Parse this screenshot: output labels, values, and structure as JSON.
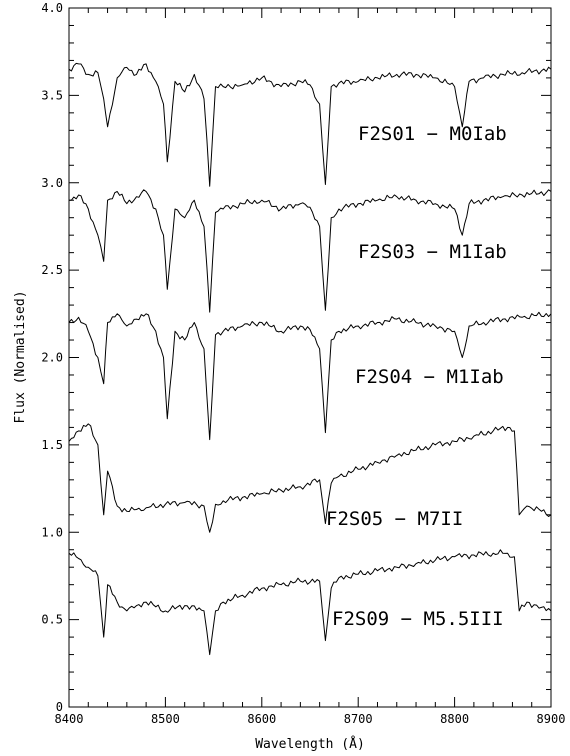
{
  "chart_data": {
    "type": "line",
    "xlabel": "Wavelength (Å)",
    "ylabel": "Flux (Normalised)",
    "xlim": [
      8400,
      8900
    ],
    "ylim": [
      0,
      4.0
    ],
    "x_ticks": [
      8400,
      8500,
      8600,
      8700,
      8800,
      8900
    ],
    "y_ticks": [
      0,
      0.5,
      1.0,
      1.5,
      2.0,
      2.5,
      3.0,
      3.5,
      4.0
    ],
    "y_tick_labels": [
      "0",
      "0.5",
      "1.0",
      "1.5",
      "2.0",
      "2.5",
      "3.0",
      "3.5",
      "4.0"
    ],
    "line_color": "#000000",
    "grid": false,
    "legend": "none",
    "series": [
      {
        "name": "F2S01 − M0Iab",
        "x": [
          8400,
          8410,
          8420,
          8430,
          8436,
          8440,
          8450,
          8460,
          8470,
          8480,
          8490,
          8498,
          8502,
          8510,
          8520,
          8530,
          8540,
          8546,
          8552,
          8560,
          8580,
          8600,
          8620,
          8640,
          8650,
          8660,
          8666,
          8672,
          8680,
          8700,
          8720,
          8740,
          8760,
          8780,
          8800,
          8808,
          8815,
          8830,
          8850,
          8870,
          8900
        ],
        "y": [
          3.65,
          3.68,
          3.62,
          3.63,
          3.48,
          3.32,
          3.6,
          3.66,
          3.62,
          3.68,
          3.58,
          3.45,
          3.12,
          3.58,
          3.52,
          3.62,
          3.48,
          2.98,
          3.55,
          3.55,
          3.56,
          3.6,
          3.55,
          3.58,
          3.56,
          3.45,
          2.99,
          3.55,
          3.57,
          3.58,
          3.6,
          3.62,
          3.62,
          3.6,
          3.55,
          3.32,
          3.58,
          3.6,
          3.62,
          3.63,
          3.65
        ]
      },
      {
        "name": "F2S03 − M1Iab",
        "x": [
          8400,
          8410,
          8420,
          8430,
          8436,
          8440,
          8450,
          8460,
          8470,
          8480,
          8490,
          8498,
          8502,
          8510,
          8520,
          8530,
          8540,
          8546,
          8552,
          8560,
          8580,
          8600,
          8620,
          8640,
          8650,
          8660,
          8666,
          8672,
          8680,
          8700,
          8720,
          8740,
          8760,
          8780,
          8800,
          8808,
          8815,
          8830,
          8850,
          8870,
          8900
        ],
        "y": [
          2.9,
          2.93,
          2.85,
          2.7,
          2.55,
          2.9,
          2.95,
          2.88,
          2.92,
          2.95,
          2.85,
          2.7,
          2.39,
          2.85,
          2.8,
          2.9,
          2.75,
          2.26,
          2.83,
          2.85,
          2.88,
          2.9,
          2.85,
          2.88,
          2.86,
          2.75,
          2.27,
          2.8,
          2.85,
          2.88,
          2.9,
          2.92,
          2.9,
          2.88,
          2.85,
          2.7,
          2.88,
          2.9,
          2.92,
          2.93,
          2.95
        ]
      },
      {
        "name": "F2S04 − M1Iab",
        "x": [
          8400,
          8410,
          8420,
          8430,
          8436,
          8440,
          8450,
          8460,
          8470,
          8480,
          8490,
          8498,
          8502,
          8510,
          8520,
          8530,
          8540,
          8546,
          8552,
          8560,
          8580,
          8600,
          8620,
          8640,
          8650,
          8660,
          8666,
          8672,
          8680,
          8700,
          8720,
          8740,
          8760,
          8780,
          8800,
          8808,
          8815,
          8830,
          8850,
          8870,
          8900
        ],
        "y": [
          2.2,
          2.23,
          2.15,
          2.0,
          1.85,
          2.2,
          2.25,
          2.18,
          2.22,
          2.25,
          2.15,
          2.0,
          1.65,
          2.15,
          2.1,
          2.2,
          2.05,
          1.53,
          2.13,
          2.15,
          2.18,
          2.2,
          2.15,
          2.18,
          2.16,
          2.05,
          1.57,
          2.1,
          2.15,
          2.18,
          2.2,
          2.22,
          2.2,
          2.18,
          2.15,
          2.0,
          2.18,
          2.2,
          2.22,
          2.23,
          2.25
        ]
      },
      {
        "name": "F2S05 − M7II",
        "x": [
          8400,
          8410,
          8420,
          8430,
          8436,
          8440,
          8450,
          8460,
          8470,
          8480,
          8500,
          8520,
          8540,
          8546,
          8552,
          8560,
          8580,
          8600,
          8620,
          8640,
          8660,
          8666,
          8672,
          8680,
          8700,
          8720,
          8740,
          8760,
          8780,
          8800,
          8820,
          8840,
          8855,
          8862,
          8867,
          8875,
          8890,
          8900
        ],
        "y": [
          1.52,
          1.58,
          1.62,
          1.5,
          1.1,
          1.35,
          1.15,
          1.12,
          1.13,
          1.14,
          1.16,
          1.17,
          1.15,
          1.0,
          1.16,
          1.18,
          1.2,
          1.22,
          1.24,
          1.26,
          1.3,
          1.05,
          1.28,
          1.32,
          1.36,
          1.4,
          1.44,
          1.47,
          1.5,
          1.52,
          1.55,
          1.58,
          1.6,
          1.58,
          1.1,
          1.15,
          1.12,
          1.1
        ]
      },
      {
        "name": "F2S09 − M5.5III",
        "x": [
          8400,
          8410,
          8420,
          8430,
          8436,
          8440,
          8450,
          8460,
          8470,
          8480,
          8500,
          8520,
          8540,
          8546,
          8552,
          8560,
          8580,
          8600,
          8620,
          8640,
          8660,
          8666,
          8672,
          8680,
          8700,
          8720,
          8740,
          8760,
          8780,
          8800,
          8820,
          8840,
          8855,
          8862,
          8867,
          8875,
          8890,
          8900
        ],
        "y": [
          0.88,
          0.85,
          0.8,
          0.75,
          0.4,
          0.7,
          0.6,
          0.55,
          0.58,
          0.6,
          0.55,
          0.58,
          0.55,
          0.3,
          0.55,
          0.6,
          0.64,
          0.68,
          0.7,
          0.72,
          0.72,
          0.38,
          0.68,
          0.74,
          0.76,
          0.78,
          0.8,
          0.82,
          0.84,
          0.86,
          0.87,
          0.88,
          0.88,
          0.86,
          0.55,
          0.6,
          0.57,
          0.55
        ]
      }
    ]
  }
}
